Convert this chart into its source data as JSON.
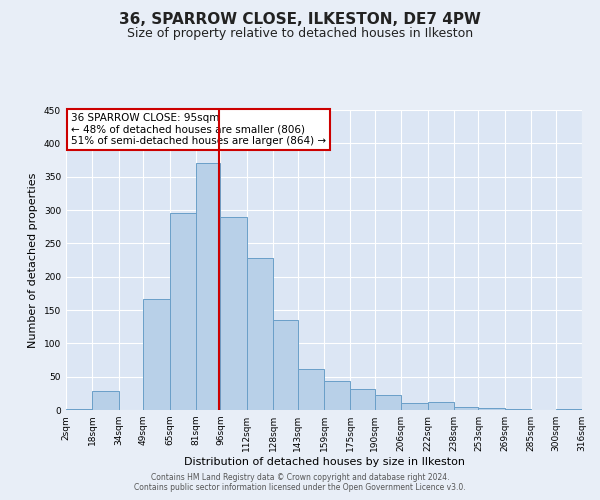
{
  "title": "36, SPARROW CLOSE, ILKESTON, DE7 4PW",
  "subtitle": "Size of property relative to detached houses in Ilkeston",
  "xlabel": "Distribution of detached houses by size in Ilkeston",
  "ylabel": "Number of detached properties",
  "bar_labels": [
    "2sqm",
    "18sqm",
    "34sqm",
    "49sqm",
    "65sqm",
    "81sqm",
    "96sqm",
    "112sqm",
    "128sqm",
    "143sqm",
    "159sqm",
    "175sqm",
    "190sqm",
    "206sqm",
    "222sqm",
    "238sqm",
    "253sqm",
    "269sqm",
    "285sqm",
    "300sqm",
    "316sqm"
  ],
  "bar_values": [
    2,
    28,
    0,
    167,
    295,
    370,
    290,
    228,
    135,
    62,
    43,
    31,
    22,
    11,
    12,
    5,
    3,
    1,
    0,
    1
  ],
  "bar_color": "#b8d0e8",
  "bar_edge_color": "#6a9fc8",
  "vline_x": 95,
  "vline_color": "#cc0000",
  "annotation_text": "36 SPARROW CLOSE: 95sqm\n← 48% of detached houses are smaller (806)\n51% of semi-detached houses are larger (864) →",
  "annotation_box_color": "#ffffff",
  "annotation_box_edge_color": "#cc0000",
  "ylim": [
    0,
    450
  ],
  "yticks": [
    0,
    50,
    100,
    150,
    200,
    250,
    300,
    350,
    400,
    450
  ],
  "bg_color": "#e8eef7",
  "plot_bg_color": "#dce6f4",
  "footer_line1": "Contains HM Land Registry data © Crown copyright and database right 2024.",
  "footer_line2": "Contains public sector information licensed under the Open Government Licence v3.0.",
  "title_fontsize": 11,
  "subtitle_fontsize": 9,
  "ylabel_fontsize": 8,
  "xlabel_fontsize": 8,
  "tick_fontsize": 6.5,
  "annot_fontsize": 7.5,
  "footer_fontsize": 5.5
}
